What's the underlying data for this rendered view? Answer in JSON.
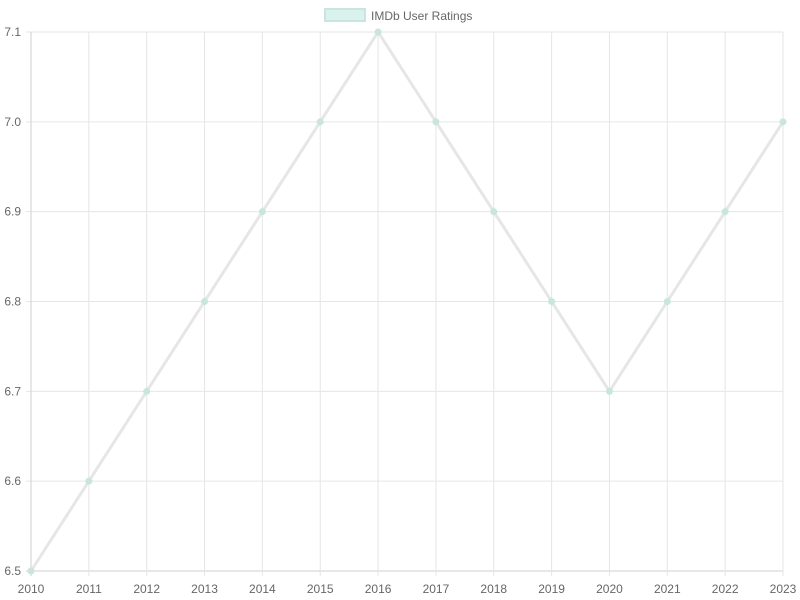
{
  "chart_data": {
    "type": "line",
    "title": "",
    "xlabel": "",
    "ylabel": "",
    "categories": [
      "2010",
      "2011",
      "2012",
      "2013",
      "2014",
      "2015",
      "2016",
      "2017",
      "2018",
      "2019",
      "2020",
      "2021",
      "2022",
      "2023"
    ],
    "series": [
      {
        "name": "IMDb User Ratings",
        "values": [
          6.5,
          6.6,
          6.7,
          6.8,
          6.9,
          7.0,
          7.1,
          7.0,
          6.9,
          6.8,
          6.7,
          6.8,
          6.9,
          7.0
        ],
        "line_color": "#e6e6e6",
        "point_color": "#c8e6df",
        "legend_fill": "#d9f2ee",
        "legend_border": "#c8e6df"
      }
    ],
    "ylim": [
      6.5,
      7.1
    ],
    "yticks": [
      "6.5",
      "6.6",
      "6.7",
      "6.8",
      "6.9",
      "7.0",
      "7.1"
    ],
    "grid": true,
    "legend_position": "top-center"
  }
}
